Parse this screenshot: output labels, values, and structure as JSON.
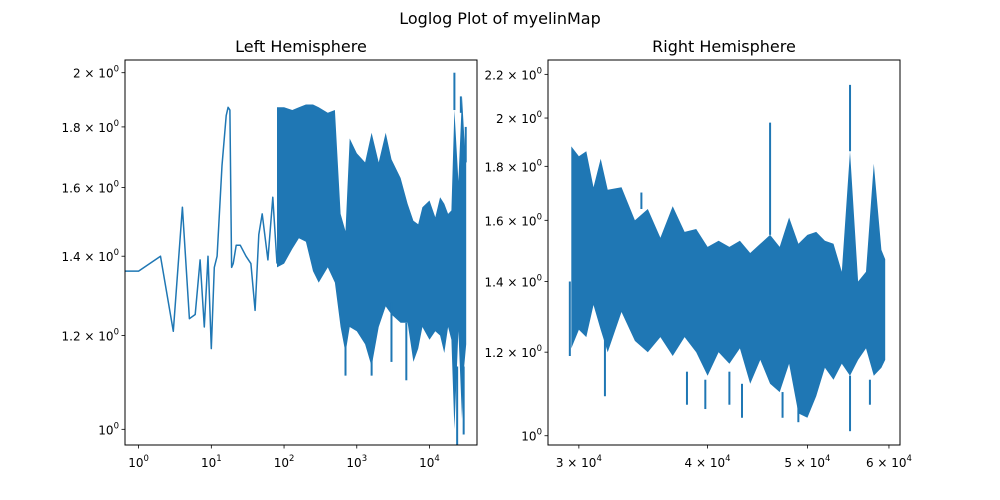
{
  "figure": {
    "suptitle": "Loglog Plot of myelinMap"
  },
  "chart_data": [
    {
      "type": "line",
      "title": "Left Hemisphere",
      "xscale": "log",
      "yscale": "log",
      "xlim": [
        0.65,
        45000
      ],
      "ylim": [
        0.97,
        2.05
      ],
      "grid": false,
      "x_ticks": [
        {
          "value": 1,
          "base": "10",
          "exp": "0"
        },
        {
          "value": 10,
          "base": "10",
          "exp": "1"
        },
        {
          "value": 100,
          "base": "10",
          "exp": "2"
        },
        {
          "value": 1000,
          "base": "10",
          "exp": "3"
        },
        {
          "value": 10000,
          "base": "10",
          "exp": "4"
        }
      ],
      "y_ticks": [
        {
          "value": 1.0,
          "base": "10",
          "exp": "0"
        },
        {
          "value": 1.2,
          "base": "1.2 × 10",
          "exp": "0"
        },
        {
          "value": 1.4,
          "base": "1.4 × 10",
          "exp": "0"
        },
        {
          "value": 1.6,
          "base": "1.6 × 10",
          "exp": "0"
        },
        {
          "value": 1.8,
          "base": "1.8 × 10",
          "exp": "0"
        },
        {
          "value": 2.0,
          "base": "2 × 10",
          "exp": "0"
        }
      ],
      "series": [
        {
          "color": "#1f77b4",
          "x": [
            0.65,
            1,
            2,
            3,
            4,
            5,
            6,
            7,
            8,
            9,
            10,
            11,
            12,
            14,
            16,
            17,
            18,
            19,
            20,
            22,
            25,
            30,
            35,
            40,
            45,
            50,
            60,
            70,
            80
          ],
          "y": [
            1.36,
            1.36,
            1.4,
            1.21,
            1.54,
            1.24,
            1.25,
            1.39,
            1.22,
            1.4,
            1.17,
            1.37,
            1.4,
            1.67,
            1.84,
            1.87,
            1.86,
            1.37,
            1.38,
            1.43,
            1.43,
            1.4,
            1.38,
            1.26,
            1.46,
            1.52,
            1.39,
            1.57,
            1.38
          ]
        }
      ],
      "envelope": {
        "x": [
          80,
          100,
          130,
          160,
          200,
          250,
          300,
          400,
          500,
          600,
          700,
          800,
          1000,
          1300,
          1600,
          2000,
          2500,
          3000,
          4000,
          5000,
          6000,
          7000,
          8000,
          10000,
          12000,
          14000,
          16000,
          18000,
          20000,
          22000,
          25000,
          28000,
          30000,
          32000
        ],
        "upper": [
          1.87,
          1.87,
          1.86,
          1.87,
          1.88,
          1.88,
          1.87,
          1.85,
          1.86,
          1.52,
          1.47,
          1.76,
          1.71,
          1.68,
          1.78,
          1.68,
          1.78,
          1.69,
          1.63,
          1.55,
          1.5,
          1.49,
          1.54,
          1.56,
          1.51,
          1.57,
          1.55,
          1.52,
          1.53,
          1.86,
          1.62,
          1.91,
          1.77,
          1.68
        ],
        "lower": [
          1.37,
          1.38,
          1.42,
          1.45,
          1.44,
          1.36,
          1.33,
          1.37,
          1.33,
          1.22,
          1.16,
          1.22,
          1.21,
          1.18,
          1.13,
          1.22,
          1.27,
          1.25,
          1.23,
          1.23,
          1.14,
          1.17,
          1.22,
          1.19,
          1.21,
          1.2,
          1.16,
          1.22,
          1.19,
          1.0,
          1.21,
          1.02,
          1.13,
          1.18
        ],
        "spikes": [
          {
            "x": 700,
            "from": 1.21,
            "to": 1.11
          },
          {
            "x": 1600,
            "from": 1.18,
            "to": 1.11
          },
          {
            "x": 3000,
            "from": 1.28,
            "to": 1.14
          },
          {
            "x": 4800,
            "from": 1.23,
            "to": 1.1
          },
          {
            "x": 22000,
            "from": 1.86,
            "to": 2.0
          },
          {
            "x": 24000,
            "from": 1.13,
            "to": 0.97
          },
          {
            "x": 27000,
            "from": 1.85,
            "to": 1.91
          },
          {
            "x": 29500,
            "from": 1.13,
            "to": 0.99
          },
          {
            "x": 31500,
            "from": 1.68,
            "to": 1.8
          }
        ]
      }
    },
    {
      "type": "line",
      "title": "Right Hemisphere",
      "xscale": "log",
      "yscale": "log",
      "xlim": [
        28000,
        61500
      ],
      "ylim": [
        0.98,
        2.27
      ],
      "grid": false,
      "x_ticks": [
        {
          "value": 30000,
          "base": "3 × 10",
          "exp": "4"
        },
        {
          "value": 40000,
          "base": "4 × 10",
          "exp": "4"
        },
        {
          "value": 50000,
          "base": "5 × 10",
          "exp": "4"
        },
        {
          "value": 60000,
          "base": "6 × 10",
          "exp": "4"
        }
      ],
      "y_ticks": [
        {
          "value": 1.0,
          "base": "10",
          "exp": "0"
        },
        {
          "value": 1.2,
          "base": "1.2 × 10",
          "exp": "0"
        },
        {
          "value": 1.4,
          "base": "1.4 × 10",
          "exp": "0"
        },
        {
          "value": 1.6,
          "base": "1.6 × 10",
          "exp": "0"
        },
        {
          "value": 1.8,
          "base": "1.8 × 10",
          "exp": "0"
        },
        {
          "value": 2.0,
          "base": "2 × 10",
          "exp": "0"
        },
        {
          "value": 2.2,
          "base": "2.2 × 10",
          "exp": "0"
        }
      ],
      "series": [],
      "envelope": {
        "x": [
          29500,
          30000,
          30500,
          31000,
          31500,
          32000,
          33000,
          34000,
          35000,
          36000,
          37000,
          38000,
          39000,
          40000,
          41000,
          42000,
          43000,
          44000,
          45000,
          46000,
          47000,
          48000,
          49000,
          50000,
          51000,
          52000,
          53000,
          54000,
          55000,
          56000,
          57000,
          58000,
          59000,
          59500
        ],
        "upper": [
          1.88,
          1.84,
          1.86,
          1.72,
          1.83,
          1.71,
          1.72,
          1.6,
          1.64,
          1.54,
          1.65,
          1.56,
          1.57,
          1.51,
          1.53,
          1.51,
          1.53,
          1.49,
          1.52,
          1.55,
          1.51,
          1.61,
          1.52,
          1.55,
          1.56,
          1.53,
          1.52,
          1.43,
          1.86,
          1.4,
          1.43,
          1.81,
          1.5,
          1.47
        ],
        "lower": [
          1.21,
          1.26,
          1.24,
          1.33,
          1.26,
          1.2,
          1.31,
          1.23,
          1.2,
          1.24,
          1.19,
          1.24,
          1.2,
          1.14,
          1.2,
          1.17,
          1.21,
          1.12,
          1.18,
          1.12,
          1.1,
          1.17,
          1.05,
          1.04,
          1.09,
          1.16,
          1.13,
          1.17,
          1.14,
          1.18,
          1.21,
          1.14,
          1.16,
          1.18
        ],
        "spikes": [
          {
            "x": 29400,
            "from": 1.4,
            "to": 1.19
          },
          {
            "x": 31800,
            "from": 1.25,
            "to": 1.09
          },
          {
            "x": 34500,
            "from": 1.64,
            "to": 1.7
          },
          {
            "x": 38200,
            "from": 1.15,
            "to": 1.07
          },
          {
            "x": 39800,
            "from": 1.13,
            "to": 1.06
          },
          {
            "x": 42000,
            "from": 1.15,
            "to": 1.07
          },
          {
            "x": 43200,
            "from": 1.12,
            "to": 1.04
          },
          {
            "x": 46000,
            "from": 1.55,
            "to": 1.98
          },
          {
            "x": 47300,
            "from": 1.1,
            "to": 1.04
          },
          {
            "x": 49000,
            "from": 1.07,
            "to": 1.03
          },
          {
            "x": 55000,
            "from": 1.86,
            "to": 2.15
          },
          {
            "x": 55000,
            "from": 1.14,
            "to": 1.01
          },
          {
            "x": 57500,
            "from": 1.13,
            "to": 1.07
          }
        ]
      }
    }
  ]
}
